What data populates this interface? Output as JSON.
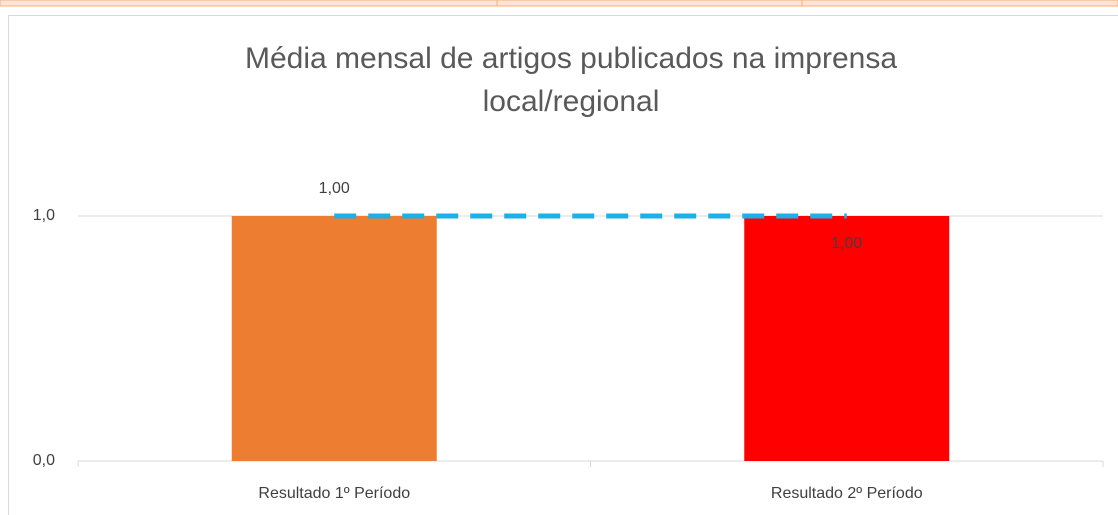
{
  "chart_data": {
    "type": "bar",
    "title": [
      "Média mensal de artigos publicados na imprensa",
      "local/regional"
    ],
    "categories": [
      "Resultado 1º Período",
      "Resultado 2º Período"
    ],
    "series": [
      {
        "type": "bar",
        "colors": [
          "#ed7d31",
          "#ff0000"
        ],
        "values": [
          1,
          1
        ]
      },
      {
        "type": "line",
        "color": "#1cb0e8",
        "dashed": true,
        "values": [
          1,
          1
        ],
        "value_labels": [
          "1,00",
          "1,00"
        ]
      }
    ],
    "ylim": [
      0,
      1.2
    ],
    "yticks": [
      {
        "value": 0,
        "label": "0,0"
      },
      {
        "value": 1,
        "label": "1,0"
      }
    ],
    "grid": true
  }
}
